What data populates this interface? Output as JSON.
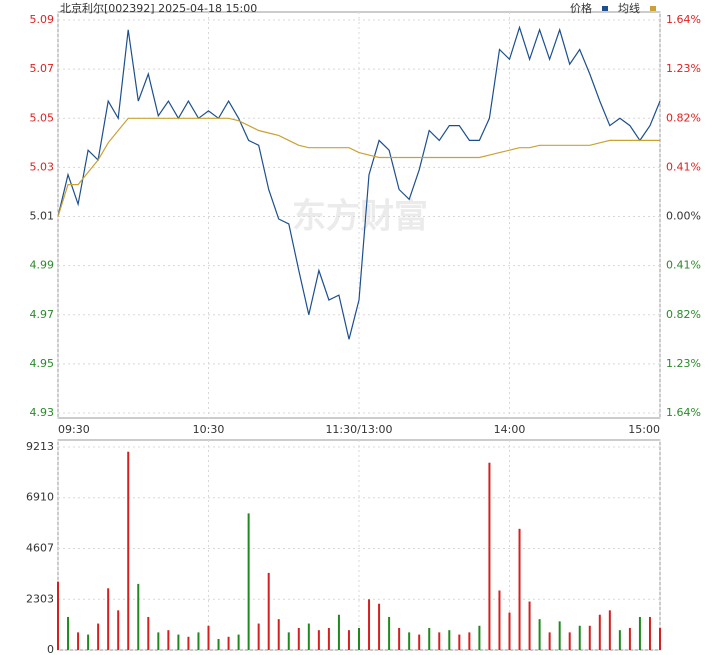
{
  "chart_data": [
    {
      "type": "line",
      "title": "北京利尔[002392] 2025-04-18 15:00",
      "watermark": "东方财富",
      "x": [
        0,
        4,
        8,
        12,
        16,
        20,
        24,
        28,
        32,
        36,
        40,
        44,
        48,
        52,
        56,
        60,
        64,
        68,
        72,
        76,
        80,
        84,
        88,
        92,
        96,
        100,
        104,
        108,
        112,
        116,
        120,
        124,
        128,
        132,
        136,
        140,
        144,
        148,
        152,
        156,
        160,
        164,
        168,
        172,
        176,
        180,
        184,
        188,
        192,
        196,
        200,
        204,
        208,
        212,
        216,
        220,
        224,
        228,
        232,
        236,
        240
      ],
      "xlim": [
        0,
        240
      ],
      "xticks": [
        {
          "value": 0,
          "label": "09:30"
        },
        {
          "value": 60,
          "label": "10:30"
        },
        {
          "value": 120,
          "label": "11:30/13:00"
        },
        {
          "value": 180,
          "label": "14:00"
        },
        {
          "value": 240,
          "label": "15:00"
        }
      ],
      "ylim": [
        4.93,
        5.09
      ],
      "yticks": [
        4.93,
        4.95,
        4.97,
        4.99,
        5.01,
        5.03,
        5.05,
        5.07,
        5.09
      ],
      "y2lim": [
        -1.64,
        1.64
      ],
      "y2ticks": [
        {
          "value": -1.64,
          "label": "1.64%"
        },
        {
          "value": -1.23,
          "label": "1.23%"
        },
        {
          "value": -0.82,
          "label": "0.82%"
        },
        {
          "value": -0.41,
          "label": "0.41%"
        },
        {
          "value": 0,
          "label": "0.00%"
        },
        {
          "value": 0.41,
          "label": "0.41%"
        },
        {
          "value": 0.82,
          "label": "0.82%"
        },
        {
          "value": 1.23,
          "label": "1.23%"
        },
        {
          "value": 1.64,
          "label": "1.64%"
        }
      ],
      "up_color": "#e02020",
      "down_color": "#2a8a2a",
      "flat_color": "#333333",
      "grid": true,
      "legend": "top-right",
      "series": [
        {
          "name": "价格",
          "color": "#1d4f8f",
          "values": [
            5.01,
            5.027,
            5.015,
            5.037,
            5.033,
            5.057,
            5.05,
            5.086,
            5.057,
            5.068,
            5.051,
            5.057,
            5.05,
            5.057,
            5.05,
            5.053,
            5.05,
            5.057,
            5.05,
            5.041,
            5.039,
            5.021,
            5.009,
            5.007,
            4.988,
            4.97,
            4.988,
            4.976,
            4.978,
            4.96,
            4.976,
            5.027,
            5.041,
            5.037,
            5.021,
            5.017,
            5.029,
            5.045,
            5.041,
            5.047,
            5.047,
            5.041,
            5.041,
            5.05,
            5.078,
            5.074,
            5.087,
            5.074,
            5.086,
            5.074,
            5.086,
            5.072,
            5.078,
            5.068,
            5.057,
            5.047,
            5.05,
            5.047,
            5.041,
            5.047,
            5.057
          ]
        },
        {
          "name": "均线",
          "color": "#c9a233",
          "values": [
            5.01,
            5.023,
            5.023,
            5.028,
            5.033,
            5.04,
            5.045,
            5.05,
            5.05,
            5.05,
            5.05,
            5.05,
            5.05,
            5.05,
            5.05,
            5.05,
            5.05,
            5.05,
            5.049,
            5.047,
            5.045,
            5.044,
            5.043,
            5.041,
            5.039,
            5.038,
            5.038,
            5.038,
            5.038,
            5.038,
            5.036,
            5.035,
            5.034,
            5.034,
            5.034,
            5.034,
            5.034,
            5.034,
            5.034,
            5.034,
            5.034,
            5.034,
            5.034,
            5.035,
            5.036,
            5.037,
            5.038,
            5.038,
            5.039,
            5.039,
            5.039,
            5.039,
            5.039,
            5.039,
            5.04,
            5.041,
            5.041,
            5.041,
            5.041,
            5.041,
            5.041
          ]
        }
      ]
    },
    {
      "type": "bar",
      "x": [
        0,
        4,
        8,
        12,
        16,
        20,
        24,
        28,
        32,
        36,
        40,
        44,
        48,
        52,
        56,
        60,
        64,
        68,
        72,
        76,
        80,
        84,
        88,
        92,
        96,
        100,
        104,
        108,
        112,
        116,
        120,
        124,
        128,
        132,
        136,
        140,
        144,
        148,
        152,
        156,
        160,
        164,
        168,
        172,
        176,
        180,
        184,
        188,
        192,
        196,
        200,
        204,
        208,
        212,
        216,
        220,
        224,
        228,
        232,
        236,
        240
      ],
      "xlim": [
        0,
        240
      ],
      "ylim": [
        0,
        9213
      ],
      "yticks": [
        0,
        2303,
        4607,
        6910,
        9213
      ],
      "grid": true,
      "values": [
        3100,
        1500,
        800,
        700,
        1200,
        2800,
        1800,
        9000,
        3000,
        1500,
        800,
        900,
        700,
        600,
        800,
        1100,
        500,
        600,
        700,
        6200,
        1200,
        3500,
        1400,
        800,
        1000,
        1200,
        900,
        1000,
        1600,
        900,
        1000,
        2300,
        2100,
        1500,
        1000,
        800,
        700,
        1000,
        800,
        900,
        700,
        800,
        1100,
        8500,
        2700,
        1700,
        5500,
        2200,
        1400,
        800,
        1300,
        800,
        1100,
        1100,
        1600,
        1800,
        900,
        1000,
        1500,
        1500,
        1000
      ],
      "colors": [
        "#d62020",
        "#1e8a1e",
        "#d62020",
        "#1e8a1e",
        "#d62020",
        "#d62020",
        "#d62020",
        "#d62020",
        "#1e8a1e",
        "#d62020",
        "#1e8a1e",
        "#d62020",
        "#1e8a1e",
        "#d62020",
        "#1e8a1e",
        "#d62020",
        "#1e8a1e",
        "#d62020",
        "#1e8a1e",
        "#1e8a1e",
        "#d62020",
        "#d62020",
        "#d62020",
        "#1e8a1e",
        "#d62020",
        "#1e8a1e",
        "#d62020",
        "#d62020",
        "#1e8a1e",
        "#d62020",
        "#1e8a1e",
        "#d62020",
        "#d62020",
        "#1e8a1e",
        "#d62020",
        "#1e8a1e",
        "#d62020",
        "#1e8a1e",
        "#d62020",
        "#1e8a1e",
        "#d62020",
        "#d62020",
        "#1e8a1e",
        "#d62020",
        "#d62020",
        "#d62020",
        "#d62020",
        "#d62020",
        "#1e8a1e",
        "#d62020",
        "#1e8a1e",
        "#d62020",
        "#1e8a1e",
        "#d62020",
        "#d62020",
        "#d62020",
        "#1e8a1e",
        "#d62020",
        "#1e8a1e",
        "#d62020",
        "#d62020"
      ]
    }
  ]
}
